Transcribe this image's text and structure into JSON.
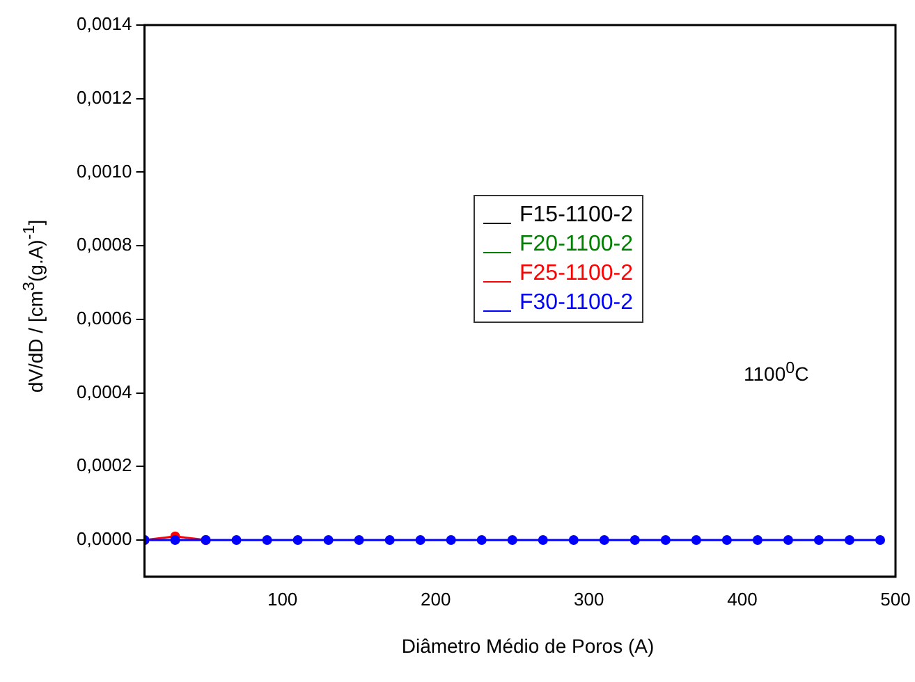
{
  "chart_data": {
    "type": "line",
    "xlabel": "Diâmetro Médio de Poros (A)",
    "ylabel": "dV/dD / [cm$^{3}$(g.A)$^{-1}$]",
    "x": [
      10,
      30,
      50,
      70,
      90,
      110,
      130,
      150,
      170,
      190,
      210,
      230,
      250,
      270,
      290,
      310,
      330,
      350,
      370,
      390,
      410,
      430,
      450,
      470,
      490
    ],
    "series": [
      {
        "name": "F15-1100-2",
        "color": "#000000",
        "values": [
          null,
          null,
          null,
          null,
          null,
          null,
          null,
          null,
          null,
          null,
          null,
          null,
          null,
          null,
          null,
          null,
          null,
          null,
          null,
          null,
          null,
          null,
          null,
          null,
          null
        ]
      },
      {
        "name": "F20-1100-2",
        "color": "#008000",
        "values": [
          null,
          null,
          null,
          null,
          null,
          null,
          null,
          null,
          null,
          null,
          null,
          null,
          null,
          null,
          null,
          null,
          null,
          null,
          null,
          null,
          null,
          null,
          null,
          null,
          null
        ]
      },
      {
        "name": "F25-1100-2",
        "color": "#ff0000",
        "values": [
          0,
          1e-05,
          0,
          null,
          null,
          null,
          null,
          null,
          null,
          null,
          null,
          null,
          null,
          null,
          null,
          null,
          null,
          null,
          null,
          null,
          null,
          null,
          null,
          null,
          null
        ]
      },
      {
        "name": "F30-1100-2",
        "color": "#0000ff",
        "values": [
          0,
          0,
          0,
          0,
          0,
          0,
          0,
          0,
          0,
          0,
          0,
          0,
          0,
          0,
          0,
          0,
          0,
          0,
          0,
          0,
          0,
          0,
          0,
          0,
          0
        ]
      }
    ],
    "xlim": [
      10,
      500
    ],
    "xticks": [
      100,
      200,
      300,
      400,
      500
    ],
    "ylim": [
      -0.0001,
      0.0014
    ],
    "yticks": [
      {
        "value": 0,
        "label": "0,0000"
      },
      {
        "value": 0.0002,
        "label": "0,0002"
      },
      {
        "value": 0.0004,
        "label": "0,0004"
      },
      {
        "value": 0.0006,
        "label": "0,0006"
      },
      {
        "value": 0.0008,
        "label": "0,0008"
      },
      {
        "value": 0.001,
        "label": "0,0010"
      },
      {
        "value": 0.0012,
        "label": "0,0012"
      },
      {
        "value": 0.0014,
        "label": "0,0014"
      }
    ],
    "annotations": [
      "1100$^{0}$C"
    ],
    "legend": "top",
    "marker": "circle",
    "line_style": "solid",
    "grid": false
  }
}
